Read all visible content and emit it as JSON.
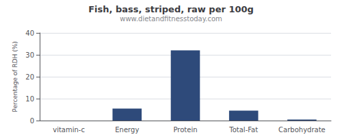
{
  "chart_data": {
    "type": "bar",
    "title": "Fish, bass, striped, raw per 100g",
    "subtitle": "www.dietandfitnesstoday.com",
    "categories": [
      "vitamin-c",
      "Energy",
      "Protein",
      "Total-Fat",
      "Carbohydrate"
    ],
    "values": [
      0,
      5.5,
      32,
      4.5,
      0.5
    ],
    "color": "#2e4a7a",
    "ylabel": "Percentage of RDH (%)",
    "ylim": [
      0,
      40
    ],
    "yticks": [
      0,
      10,
      20,
      30,
      40
    ],
    "grid": true
  }
}
